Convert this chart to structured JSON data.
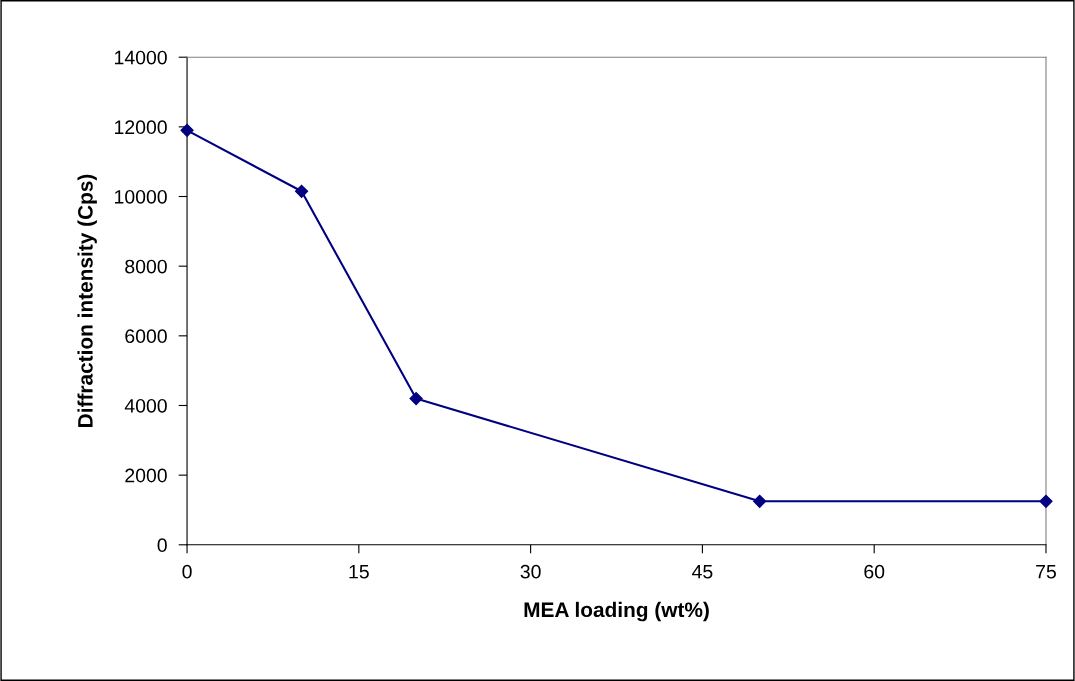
{
  "chart_data": {
    "type": "line",
    "xlabel": "MEA loading (wt%)",
    "ylabel": "Diffraction intensity (Cps)",
    "x": [
      0,
      10,
      20,
      50,
      75
    ],
    "series": [
      {
        "color": "#000080",
        "values": [
          11900,
          10150,
          4200,
          1250,
          1250
        ]
      }
    ],
    "xlim": [
      0,
      75
    ],
    "xticks": [
      0,
      15,
      30,
      45,
      60,
      75
    ],
    "ylim": [
      0,
      14000
    ],
    "yticks": [
      0,
      2000,
      4000,
      6000,
      8000,
      10000,
      12000,
      14000
    ],
    "grid": false,
    "legend": false,
    "marker": "diamond",
    "line_style": "solid"
  }
}
